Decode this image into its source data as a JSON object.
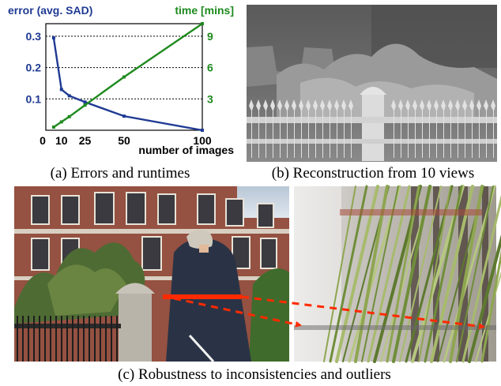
{
  "captions": {
    "a": "(a) Errors and runtimes",
    "b": "(b) Reconstruction from 10 views",
    "c": "(c) Robustness to inconsistencies and outliers"
  },
  "colors": {
    "error": "#1f3a93",
    "time": "#1e8a1e",
    "arrow": "#ff2a00"
  },
  "chart_data": {
    "type": "line",
    "xlabel": "number of images",
    "y_left_label": "error (avg. SAD)",
    "y_right_label": "time [mins]",
    "x_ticks": [
      0,
      10,
      25,
      50,
      100
    ],
    "x_tick_labels": [
      "0",
      "10",
      "25",
      "50",
      "100"
    ],
    "y_left_ticks": [
      0.1,
      0.2,
      0.3
    ],
    "y_left_tick_labels": [
      "0.1",
      "0.2",
      "0.3"
    ],
    "y_right_ticks": [
      3,
      6,
      9
    ],
    "y_right_tick_labels": [
      "3",
      "6",
      "9"
    ],
    "xlim": [
      0,
      100
    ],
    "y_left_lim": [
      0,
      0.34
    ],
    "y_right_lim": [
      0,
      10.2
    ],
    "grid": "horizontal dotted",
    "series": [
      {
        "axis": "left",
        "x": [
          5,
          10,
          15,
          25,
          50,
          100
        ],
        "values": [
          0.295,
          0.13,
          0.11,
          0.09,
          0.045,
          0.0
        ]
      },
      {
        "axis": "right",
        "x": [
          5,
          10,
          15,
          25,
          50,
          100
        ],
        "values": [
          0.3,
          0.8,
          1.3,
          2.4,
          5.1,
          10.2
        ]
      }
    ]
  }
}
